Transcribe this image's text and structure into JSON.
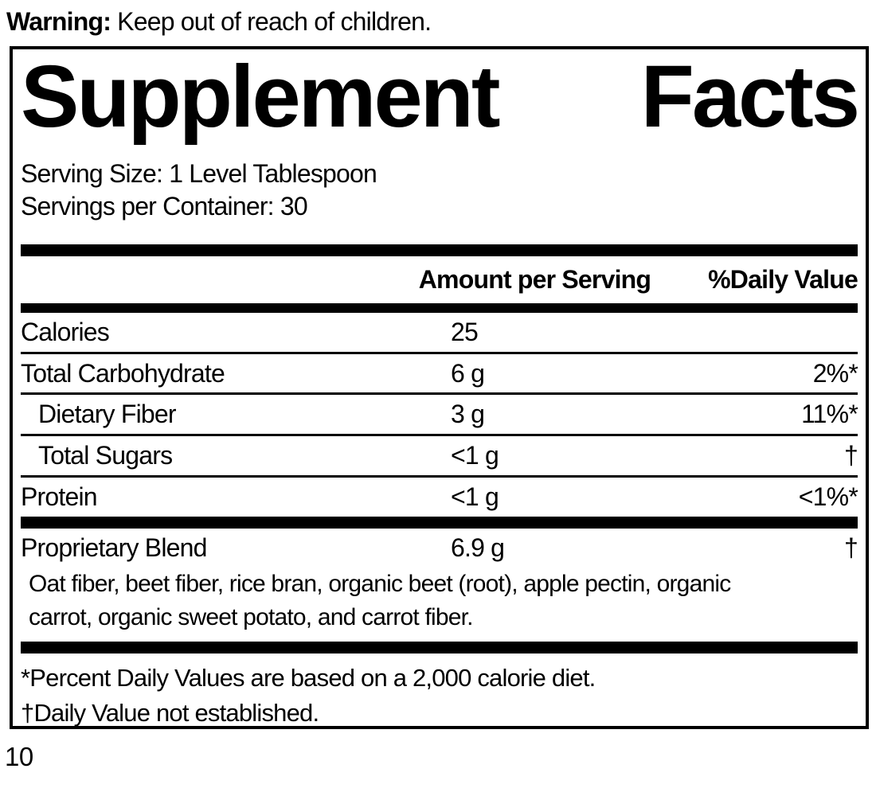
{
  "page": {
    "warning_label": "Warning:",
    "warning_text": " Keep out of reach of children.",
    "page_number": "10"
  },
  "label": {
    "title_words": [
      "Supplement",
      "Facts"
    ],
    "serving_size": "Serving Size: 1 Level Tablespoon",
    "servings_per_container": "Servings per Container: 30",
    "columns": {
      "amount": "Amount per Serving",
      "daily_value": "%Daily Value"
    },
    "rows": [
      {
        "name": "Calories",
        "amount": "25",
        "dv": ""
      },
      {
        "name": "Total Carbohydrate",
        "amount": "6 g",
        "dv": "2%*"
      },
      {
        "name": "Dietary Fiber",
        "amount": "3 g",
        "dv": "11%*"
      },
      {
        "name": "Total Sugars",
        "amount": "<1 g",
        "dv": "†"
      },
      {
        "name": "Protein",
        "amount": "<1 g",
        "dv": "<1%*"
      }
    ],
    "blend": {
      "name": "Proprietary Blend",
      "amount": "6.9 g",
      "dv": "†",
      "description_lines": [
        "Oat fiber, beet fiber, rice bran, organic beet (root), apple pectin, organic",
        "carrot, organic sweet potato, and carrot fiber."
      ]
    },
    "footnotes": [
      "*Percent Daily Values are based on a 2,000 calorie diet.",
      "†Daily Value not established."
    ],
    "colors": {
      "ink": "#000000",
      "paper": "#ffffff"
    }
  }
}
